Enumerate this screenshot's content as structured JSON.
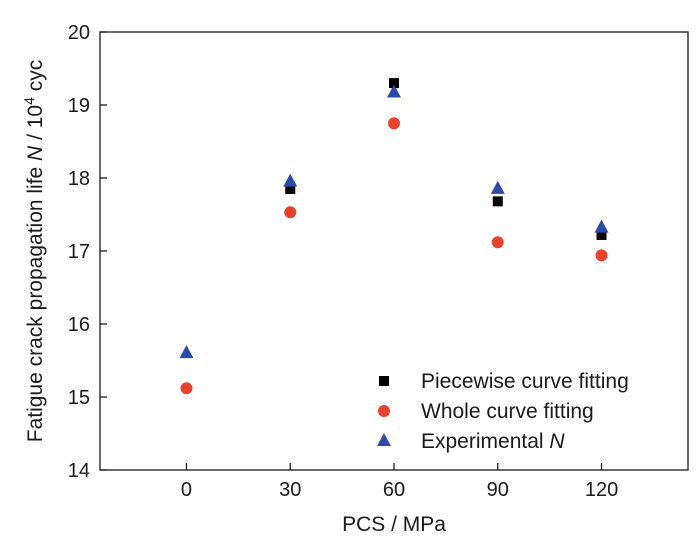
{
  "chart_data": {
    "type": "scatter",
    "title": "",
    "xlabel": "PCS / MPa",
    "ylabel": {
      "prefix": "Fatigue crack propagation life ",
      "symbol": "N",
      "unit_prefix": " / 10",
      "unit_exponent": "4",
      "unit_suffix": " cyc"
    },
    "xlim": [
      -25,
      145
    ],
    "ylim": [
      14,
      20
    ],
    "x_ticks": [
      0,
      30,
      60,
      90,
      120
    ],
    "y_ticks": [
      14,
      15,
      16,
      17,
      18,
      19,
      20
    ],
    "grid": false,
    "legend_position": "bottom-right",
    "series": [
      {
        "name": "Piecewise curve fitting",
        "legend_label": "Piecewise curve fitting",
        "legend_symbol": "",
        "marker": "square",
        "color": "#000000",
        "x": [
          30,
          60,
          90,
          120
        ],
        "y": [
          17.85,
          19.3,
          17.68,
          17.22
        ]
      },
      {
        "name": "Whole curve fitting",
        "legend_label": "Whole curve fitting",
        "legend_symbol": "",
        "marker": "circle",
        "color": "#e8432a",
        "x": [
          0,
          30,
          60,
          90,
          120
        ],
        "y": [
          15.12,
          17.53,
          18.75,
          17.12,
          16.94
        ]
      },
      {
        "name": "Experimental N",
        "legend_label": "Experimental ",
        "legend_symbol": "N",
        "marker": "triangle",
        "color": "#2a4bab",
        "x": [
          0,
          30,
          60,
          90,
          120
        ],
        "y": [
          15.6,
          17.95,
          19.17,
          17.85,
          17.32
        ]
      }
    ]
  }
}
